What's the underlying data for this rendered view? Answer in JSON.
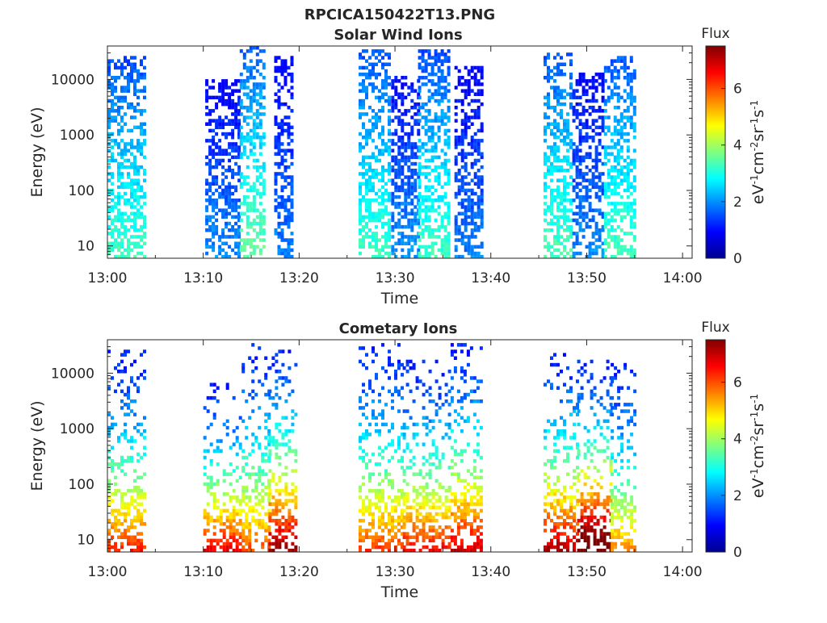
{
  "figure_title": "RPCICA150422T13.PNG",
  "chart_data": [
    {
      "type": "heatmap",
      "title": "Solar Wind Ions",
      "xlabel": "Time",
      "ylabel": "Energy (eV)",
      "x_ticks": [
        "13:00",
        "13:10",
        "13:20",
        "13:30",
        "13:40",
        "13:50",
        "14:00"
      ],
      "x_range_minutes": [
        0,
        61
      ],
      "y_ticks": [
        "10",
        "100",
        "1000",
        "10000"
      ],
      "y_scale": "log",
      "y_range": [
        6,
        40000
      ],
      "colorbar": {
        "label": "Flux",
        "units_label": "eV-1cm-2sr-1s-1",
        "ticks": [
          "0",
          "2",
          "4",
          "6"
        ],
        "range": [
          0,
          7.5
        ],
        "colormap": "jet"
      },
      "bursts": [
        {
          "start_min": 0.0,
          "end_min": 3.8,
          "emax": 26000,
          "peak": 3.3
        },
        {
          "start_min": 10.2,
          "end_min": 13.8,
          "emax": 9000,
          "peak": 2.0
        },
        {
          "start_min": 13.8,
          "end_min": 16.3,
          "emax": 36000,
          "peak": 3.6
        },
        {
          "start_min": 17.4,
          "end_min": 19.5,
          "emax": 24000,
          "peak": 1.9
        },
        {
          "start_min": 26.2,
          "end_min": 29.6,
          "emax": 33000,
          "peak": 3.3
        },
        {
          "start_min": 29.6,
          "end_min": 32.4,
          "emax": 11000,
          "peak": 2.1
        },
        {
          "start_min": 32.4,
          "end_min": 35.6,
          "emax": 31000,
          "peak": 3.3
        },
        {
          "start_min": 36.2,
          "end_min": 39.0,
          "emax": 16000,
          "peak": 1.9
        },
        {
          "start_min": 45.5,
          "end_min": 48.5,
          "emax": 30000,
          "peak": 3.4
        },
        {
          "start_min": 48.5,
          "end_min": 51.8,
          "emax": 13000,
          "peak": 2.0
        },
        {
          "start_min": 51.8,
          "end_min": 55.0,
          "emax": 26000,
          "peak": 3.4
        }
      ]
    },
    {
      "type": "heatmap",
      "title": "Cometary Ions",
      "xlabel": "Time",
      "ylabel": "Energy (eV)",
      "x_ticks": [
        "13:00",
        "13:10",
        "13:20",
        "13:30",
        "13:40",
        "13:50",
        "14:00"
      ],
      "x_range_minutes": [
        0,
        61
      ],
      "y_ticks": [
        "10",
        "100",
        "1000",
        "10000"
      ],
      "y_scale": "log",
      "y_range": [
        6,
        40000
      ],
      "colorbar": {
        "label": "Flux",
        "units_label": "eV-1cm-2sr-1s-1",
        "ticks": [
          "0",
          "2",
          "4",
          "6"
        ],
        "range": [
          0,
          7.5
        ],
        "colormap": "jet"
      },
      "bursts": [
        {
          "start_min": 0.0,
          "end_min": 3.8,
          "emax": 24000,
          "peak": 5.2
        },
        {
          "start_min": 10.0,
          "end_min": 14.0,
          "emax": 6000,
          "peak": 5.6
        },
        {
          "start_min": 14.0,
          "end_min": 16.8,
          "emax": 34000,
          "peak": 4.8
        },
        {
          "start_min": 16.8,
          "end_min": 19.6,
          "emax": 34000,
          "peak": 6.2
        },
        {
          "start_min": 26.2,
          "end_min": 30.8,
          "emax": 32000,
          "peak": 5.0
        },
        {
          "start_min": 30.8,
          "end_min": 35.8,
          "emax": 16000,
          "peak": 5.4
        },
        {
          "start_min": 35.8,
          "end_min": 39.2,
          "emax": 31000,
          "peak": 5.8
        },
        {
          "start_min": 45.5,
          "end_min": 49.0,
          "emax": 23000,
          "peak": 6.0
        },
        {
          "start_min": 49.0,
          "end_min": 52.5,
          "emax": 16000,
          "peak": 7.2
        },
        {
          "start_min": 52.5,
          "end_min": 55.0,
          "emax": 14000,
          "peak": 4.4
        }
      ]
    }
  ]
}
